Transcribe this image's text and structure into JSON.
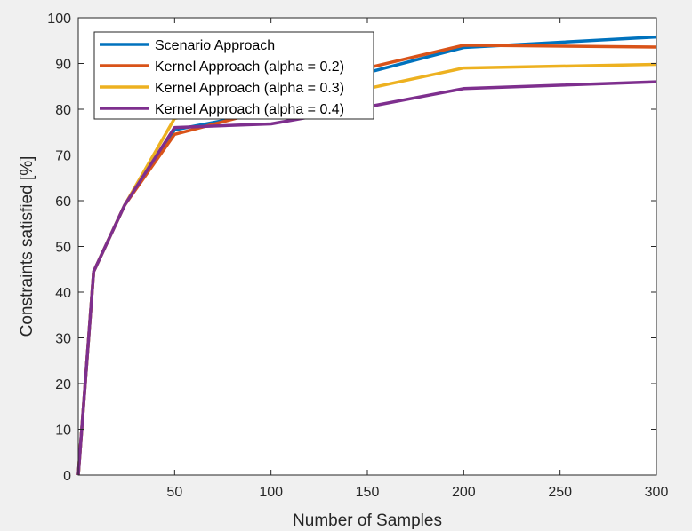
{
  "chart_data": {
    "type": "line",
    "xlabel": "Number of Samples",
    "ylabel": "Constraints satisfied [%]",
    "xlim": [
      0,
      300
    ],
    "ylim": [
      0,
      100
    ],
    "xticks": [
      50,
      100,
      150,
      200,
      250,
      300
    ],
    "yticks": [
      0,
      10,
      20,
      30,
      40,
      50,
      60,
      70,
      80,
      90,
      100
    ],
    "grid": false,
    "legend_position": "top-left",
    "series": [
      {
        "name": "Scenario Approach",
        "color": "#0072BD",
        "x": [
          0,
          8,
          24,
          50,
          100,
          150,
          200,
          300
        ],
        "y": [
          0,
          44.5,
          59,
          75.5,
          79.5,
          88,
          93.5,
          95.8
        ]
      },
      {
        "name": "Kernel Approach (alpha = 0.2)",
        "color": "#D95319",
        "x": [
          0,
          8,
          24,
          50,
          100,
          150,
          200,
          300
        ],
        "y": [
          0,
          44.5,
          59,
          74.5,
          80,
          89,
          94,
          93.6
        ]
      },
      {
        "name": "Kernel Approach (alpha = 0.3)",
        "color": "#EDB120",
        "x": [
          0,
          8,
          24,
          50,
          100,
          150,
          200,
          300
        ],
        "y": [
          0,
          44.5,
          59,
          78,
          81,
          84.5,
          89,
          89.8
        ]
      },
      {
        "name": "Kernel Approach (alpha = 0.4)",
        "color": "#7E2F8E",
        "x": [
          0,
          8,
          24,
          50,
          100,
          150,
          200,
          300
        ],
        "y": [
          0,
          44.5,
          59,
          76,
          76.8,
          80.5,
          84.5,
          86
        ]
      }
    ]
  }
}
